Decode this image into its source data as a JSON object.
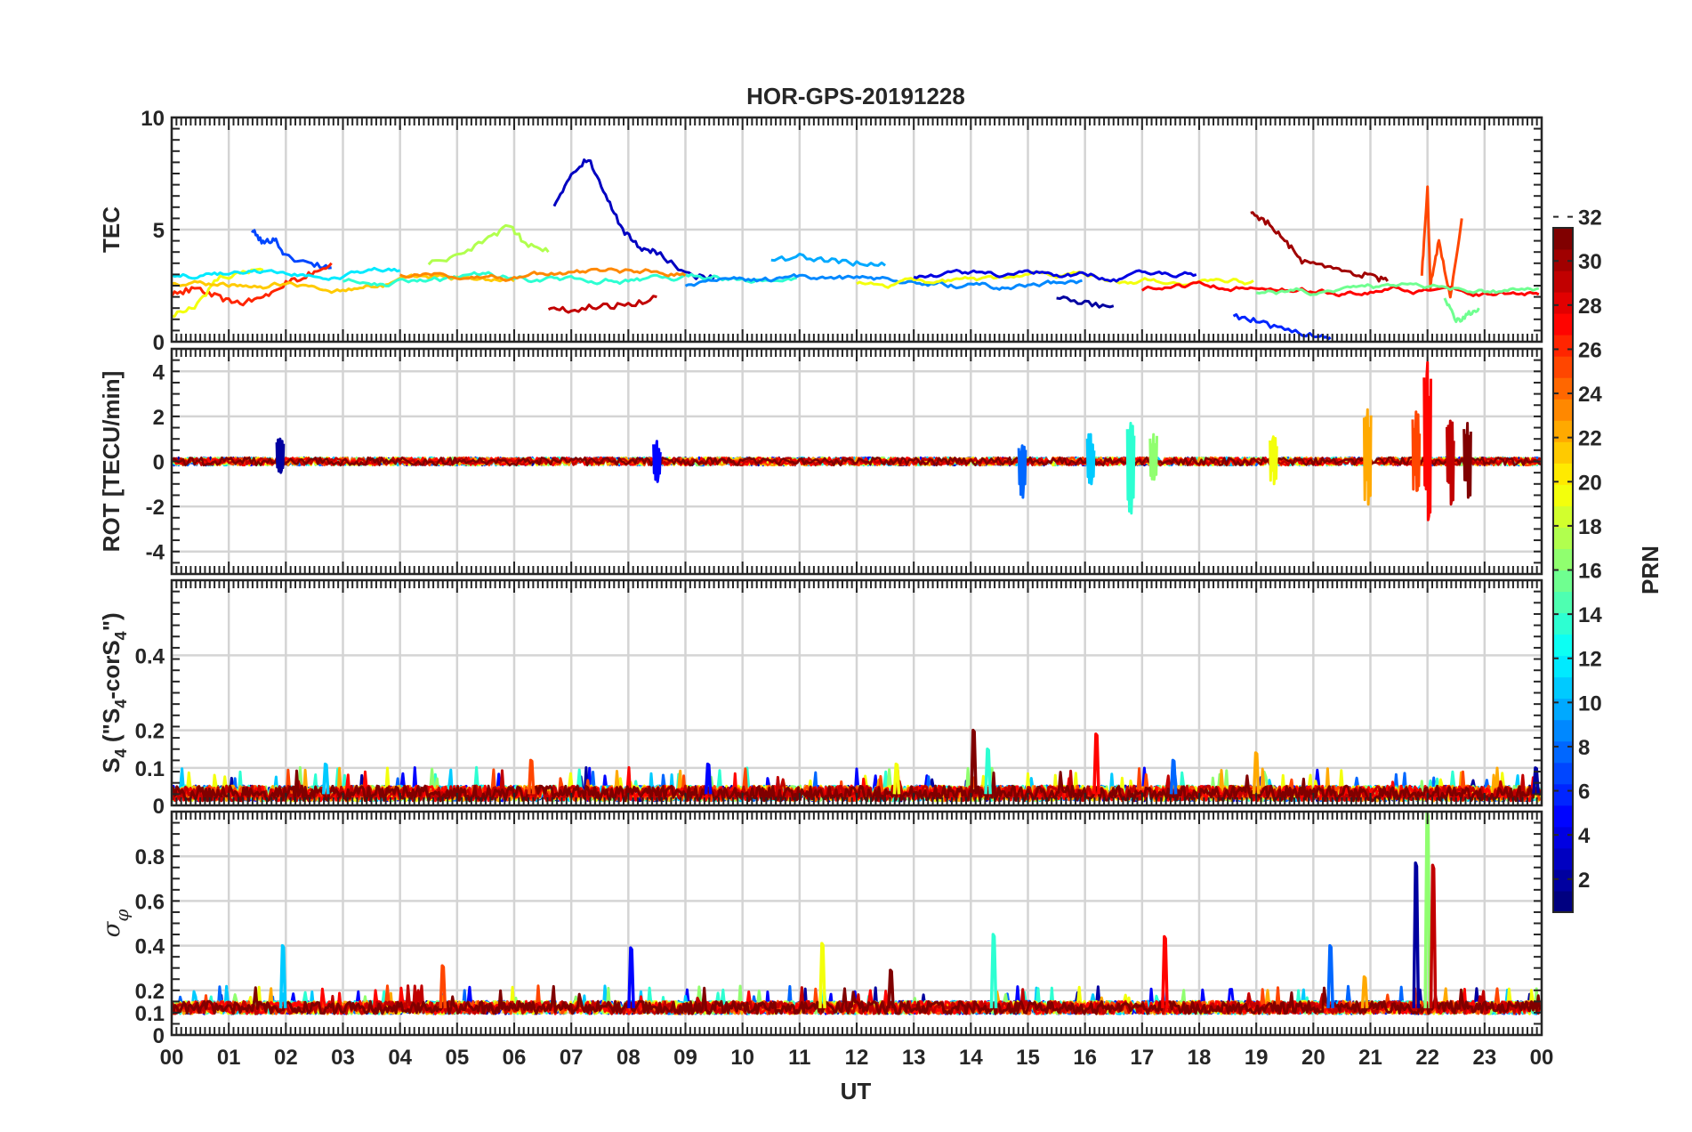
{
  "chart_data": {
    "type": "line",
    "title": "HOR-GPS-20191228",
    "xlabel": "UT",
    "x_ticks": [
      "00",
      "01",
      "02",
      "03",
      "04",
      "05",
      "06",
      "07",
      "08",
      "09",
      "10",
      "11",
      "12",
      "13",
      "14",
      "15",
      "16",
      "17",
      "18",
      "19",
      "20",
      "21",
      "22",
      "23",
      "00"
    ],
    "xlim": [
      0,
      24
    ],
    "grid": true,
    "colorbar": {
      "label": "PRN",
      "range": [
        1,
        32
      ],
      "ticks": [
        "2",
        "4",
        "6",
        "8",
        "10",
        "12",
        "14",
        "16",
        "18",
        "20",
        "22",
        "24",
        "26",
        "28",
        "30",
        "32"
      ],
      "colormap": "jet"
    },
    "panels": [
      {
        "ylabel": "TEC",
        "ylim": [
          0,
          10
        ],
        "y_ticks": [
          "0",
          "5",
          "10"
        ],
        "series": [
          {
            "prn": 3,
            "x": [
              6.7,
              7.0,
              7.3,
              7.6,
              7.9,
              8.2,
              8.5,
              9.0,
              9.5
            ],
            "values": [
              6.1,
              7.5,
              8.2,
              6.5,
              5.0,
              4.2,
              4.0,
              3.0,
              2.8
            ]
          },
          {
            "prn": 7,
            "x": [
              1.4,
              1.6,
              1.8,
              2.0,
              2.4,
              2.8
            ],
            "values": [
              5.0,
              4.4,
              4.6,
              3.8,
              3.5,
              3.3
            ]
          },
          {
            "prn": 30,
            "x": [
              6.6,
              7.0,
              7.5,
              8.0,
              8.5
            ],
            "values": [
              1.5,
              1.4,
              1.6,
              1.6,
              2.0
            ]
          },
          {
            "prn": 31,
            "x": [
              18.9,
              19.2,
              19.5,
              19.8,
              20.2,
              20.6,
              21.0,
              21.3
            ],
            "values": [
              5.8,
              5.3,
              4.5,
              3.6,
              3.3,
              3.1,
              2.9,
              2.7
            ]
          },
          {
            "prn": 6,
            "x": [
              18.6,
              19.0,
              19.5,
              20.0,
              20.3
            ],
            "values": [
              1.2,
              0.9,
              0.5,
              0.3,
              0.2
            ]
          },
          {
            "prn": 18,
            "x": [
              4.5,
              5.0,
              5.5,
              5.9,
              6.2,
              6.6
            ],
            "values": [
              3.5,
              3.8,
              4.5,
              5.2,
              4.4,
              4.0
            ]
          },
          {
            "prn": 27,
            "x": [
              0.0,
              0.4,
              0.8,
              1.2,
              1.6,
              2.0,
              2.4,
              2.8
            ],
            "values": [
              2.1,
              2.4,
              2.0,
              1.7,
              2.0,
              2.6,
              3.0,
              3.5
            ]
          },
          {
            "prn": 26,
            "x": [
              21.9,
              22.0,
              22.05,
              22.2,
              22.4,
              22.6
            ],
            "values": [
              3.0,
              6.8,
              2.5,
              4.5,
              2.0,
              5.5
            ]
          },
          {
            "prn": 20,
            "x": [
              0.0,
              0.4,
              0.8,
              1.2,
              1.6
            ],
            "values": [
              1.2,
              1.5,
              2.8,
              3.0,
              3.2
            ]
          },
          {
            "prn": 10,
            "x": [
              10.5,
              11.0,
              11.5,
              12.0,
              12.5
            ],
            "values": [
              3.7,
              3.8,
              3.6,
              3.5,
              3.4
            ]
          },
          {
            "prn": 16,
            "x": [
              22.3,
              22.5,
              22.7,
              22.9
            ],
            "values": [
              2.0,
              0.9,
              1.2,
              1.5
            ]
          },
          {
            "prn": 2,
            "x": [
              15.5,
              16.0,
              16.5
            ],
            "values": [
              2.0,
              1.7,
              1.6
            ]
          }
        ]
      },
      {
        "ylabel": "ROT [TECU/min]",
        "ylim": [
          -5,
          5
        ],
        "y_ticks": [
          "-4",
          "-2",
          "0",
          "2",
          "4"
        ],
        "events": [
          {
            "x": 1.9,
            "min": -0.5,
            "max": 1.0
          },
          {
            "x": 8.5,
            "min": -0.9,
            "max": 0.9
          },
          {
            "x": 14.9,
            "min": -1.6,
            "max": 0.7
          },
          {
            "x": 16.1,
            "min": -1.0,
            "max": 1.2
          },
          {
            "x": 16.8,
            "min": -2.3,
            "max": 1.7
          },
          {
            "x": 17.2,
            "min": -0.8,
            "max": 1.2
          },
          {
            "x": 19.3,
            "min": -1.0,
            "max": 1.1
          },
          {
            "x": 20.95,
            "min": -1.9,
            "max": 2.3
          },
          {
            "x": 21.8,
            "min": -1.3,
            "max": 2.2
          },
          {
            "x": 22.0,
            "min": -2.6,
            "max": 4.4
          },
          {
            "x": 22.4,
            "min": -1.9,
            "max": 1.8
          },
          {
            "x": 22.7,
            "min": -1.6,
            "max": 1.7
          }
        ]
      },
      {
        "ylabel": "S4 (\"S4-corS4\")",
        "ylim": [
          0,
          0.6
        ],
        "y_ticks": [
          "0",
          "0.1",
          "0.2",
          "0.4"
        ],
        "baseline": 0.03,
        "events": [
          {
            "x": 2.7,
            "value": 0.11
          },
          {
            "x": 6.3,
            "value": 0.12
          },
          {
            "x": 9.4,
            "value": 0.11
          },
          {
            "x": 12.7,
            "value": 0.11
          },
          {
            "x": 14.05,
            "value": 0.2
          },
          {
            "x": 14.3,
            "value": 0.15
          },
          {
            "x": 16.2,
            "value": 0.19
          },
          {
            "x": 17.55,
            "value": 0.12
          },
          {
            "x": 19.0,
            "value": 0.14
          },
          {
            "x": 23.9,
            "value": 0.1
          }
        ]
      },
      {
        "ylabel": "σφ",
        "ylim": [
          0,
          1
        ],
        "y_ticks": [
          "0",
          "0.1",
          "0.2",
          "0.4",
          "0.6",
          "0.8"
        ],
        "baseline": 0.12,
        "events": [
          {
            "x": 1.95,
            "value": 0.4
          },
          {
            "x": 4.75,
            "value": 0.31
          },
          {
            "x": 8.05,
            "value": 0.39
          },
          {
            "x": 11.4,
            "value": 0.41
          },
          {
            "x": 12.6,
            "value": 0.29
          },
          {
            "x": 14.4,
            "value": 0.45
          },
          {
            "x": 17.4,
            "value": 0.44
          },
          {
            "x": 20.3,
            "value": 0.4
          },
          {
            "x": 20.9,
            "value": 0.26
          },
          {
            "x": 21.8,
            "value": 0.77
          },
          {
            "x": 22.0,
            "value": 1.0
          },
          {
            "x": 22.1,
            "value": 0.76
          }
        ]
      }
    ]
  }
}
